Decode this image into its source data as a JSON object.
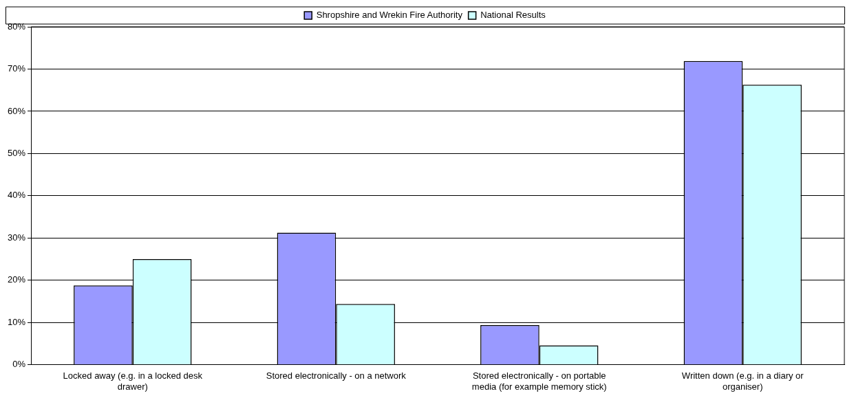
{
  "chart_data": {
    "type": "bar",
    "categories": [
      "Locked away (e.g. in a locked desk drawer)",
      "Stored electronically - on a network",
      "Stored electronically - on portable media (for example memory stick)",
      "Written down (e.g. in a diary or organiser)"
    ],
    "series": [
      {
        "name": "Shropshire and Wrekin Fire Authority",
        "color": "#9999ff",
        "values": [
          18.8,
          31.3,
          9.4,
          71.9
        ]
      },
      {
        "name": "National Results",
        "color": "#ccffff",
        "values": [
          25.0,
          14.4,
          4.6,
          66.3
        ]
      }
    ],
    "ylim": [
      0,
      80
    ],
    "yticks": [
      {
        "value": 0,
        "label": "0%"
      },
      {
        "value": 10,
        "label": "10%"
      },
      {
        "value": 20,
        "label": "20%"
      },
      {
        "value": 30,
        "label": "30%"
      },
      {
        "value": 40,
        "label": "40%"
      },
      {
        "value": 50,
        "label": "50%"
      },
      {
        "value": 60,
        "label": "60%"
      },
      {
        "value": 70,
        "label": "70%"
      },
      {
        "value": 80,
        "label": "80%"
      }
    ],
    "grid": "y",
    "legend": "top"
  }
}
